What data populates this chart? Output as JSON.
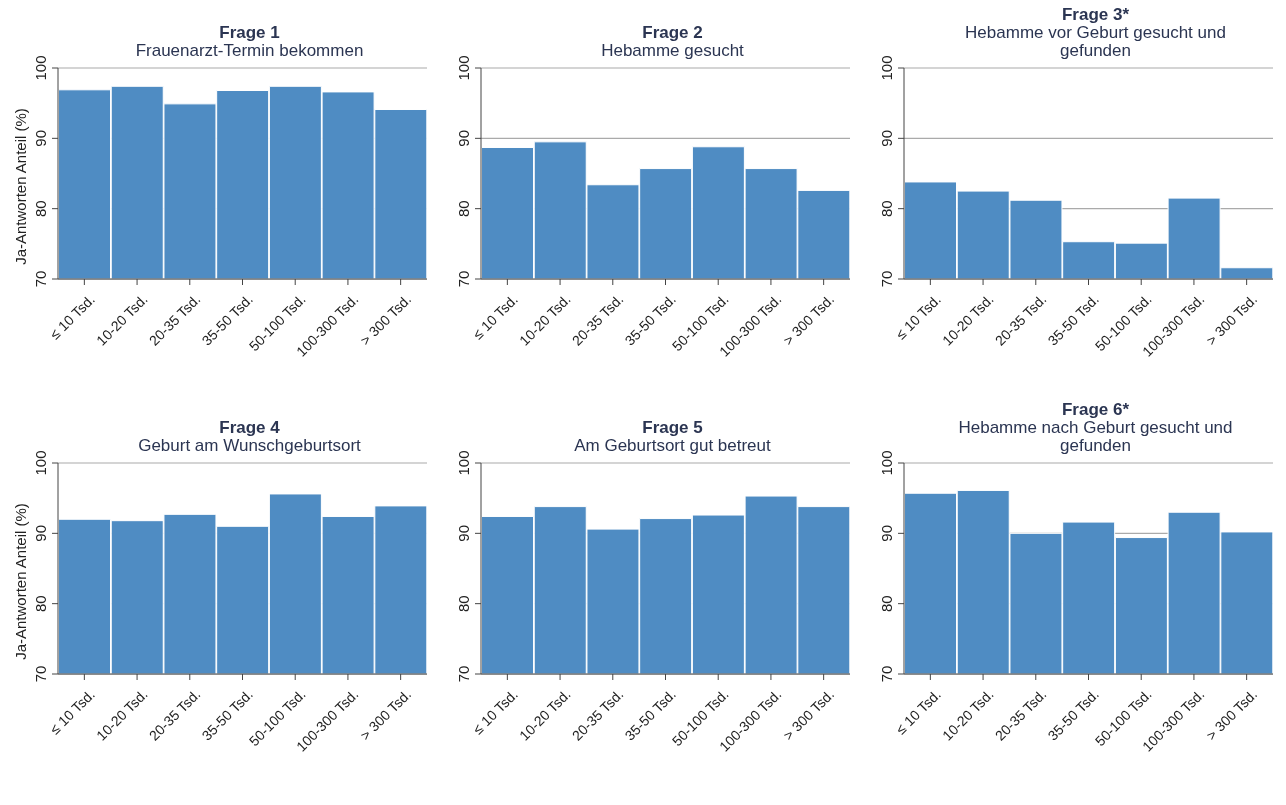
{
  "chart_data": [
    {
      "type": "bar",
      "title": "Frage 1",
      "subtitle": "Frauenarzt-Termin bekommen",
      "ylabel": "Ja-Antworten Anteil (%)",
      "categories": [
        "≤ 10 Tsd.",
        "10-20 Tsd.",
        "20-35 Tsd.",
        "35-50 Tsd.",
        "50-100 Tsd.",
        "100-300 Tsd.",
        "> 300 Tsd."
      ],
      "values": [
        96.9,
        97.4,
        94.9,
        96.8,
        97.4,
        96.6,
        94.1
      ],
      "color": "#4f8cc3",
      "ylim": [
        70,
        100
      ],
      "yticks": [
        70,
        80,
        90,
        100
      ],
      "grid": "y"
    },
    {
      "type": "bar",
      "title": "Frage 2",
      "subtitle": "Hebamme gesucht",
      "categories": [
        "≤ 10 Tsd.",
        "10-20 Tsd.",
        "20-35 Tsd.",
        "35-50 Tsd.",
        "50-100 Tsd.",
        "100-300 Tsd.",
        "> 300 Tsd."
      ],
      "values": [
        88.7,
        89.5,
        83.4,
        85.7,
        88.8,
        85.7,
        82.6
      ],
      "color": "#4f8cc3",
      "ylim": [
        70,
        100
      ],
      "yticks": [
        70,
        80,
        90,
        100
      ],
      "grid": "y"
    },
    {
      "type": "bar",
      "title": "Frage 3*",
      "subtitle": "Hebamme vor Geburt gesucht und gefunden",
      "categories": [
        "≤ 10 Tsd.",
        "10-20 Tsd.",
        "20-35 Tsd.",
        "35-50 Tsd.",
        "50-100 Tsd.",
        "100-300 Tsd.",
        "> 300 Tsd."
      ],
      "values": [
        83.8,
        82.5,
        81.2,
        75.3,
        75.1,
        81.5,
        71.6
      ],
      "color": "#4f8cc3",
      "ylim": [
        70,
        100
      ],
      "yticks": [
        70,
        80,
        90,
        100
      ],
      "grid": "y"
    },
    {
      "type": "bar",
      "title": "Frage 4",
      "subtitle": "Geburt am Wunschgeburtsort",
      "ylabel": "Ja-Antworten Anteil (%)",
      "categories": [
        "≤ 10 Tsd.",
        "10-20 Tsd.",
        "20-35 Tsd.",
        "35-50 Tsd.",
        "50-100 Tsd.",
        "100-300 Tsd.",
        "> 300 Tsd."
      ],
      "values": [
        92.0,
        91.8,
        92.7,
        91.0,
        95.6,
        92.4,
        93.9
      ],
      "color": "#4f8cc3",
      "ylim": [
        70,
        100
      ],
      "yticks": [
        70,
        80,
        90,
        100
      ],
      "grid": "y"
    },
    {
      "type": "bar",
      "title": "Frage 5",
      "subtitle": "Am Geburtsort gut betreut",
      "categories": [
        "≤ 10 Tsd.",
        "10-20 Tsd.",
        "20-35 Tsd.",
        "35-50 Tsd.",
        "50-100 Tsd.",
        "100-300 Tsd.",
        "> 300 Tsd."
      ],
      "values": [
        92.4,
        93.8,
        90.6,
        92.1,
        92.6,
        95.3,
        93.8
      ],
      "color": "#4f8cc3",
      "ylim": [
        70,
        100
      ],
      "yticks": [
        70,
        80,
        90,
        100
      ],
      "grid": "y"
    },
    {
      "type": "bar",
      "title": "Frage 6*",
      "subtitle": "Hebamme nach Geburt gesucht und gefunden",
      "categories": [
        "≤ 10 Tsd.",
        "10-20 Tsd.",
        "20-35 Tsd.",
        "35-50 Tsd.",
        "50-100 Tsd.",
        "100-300 Tsd.",
        "> 300 Tsd."
      ],
      "values": [
        95.7,
        96.1,
        90.0,
        91.6,
        89.4,
        93.0,
        90.2
      ],
      "color": "#4f8cc3",
      "ylim": [
        70,
        100
      ],
      "yticks": [
        70,
        80,
        90,
        100
      ],
      "grid": "y"
    }
  ]
}
